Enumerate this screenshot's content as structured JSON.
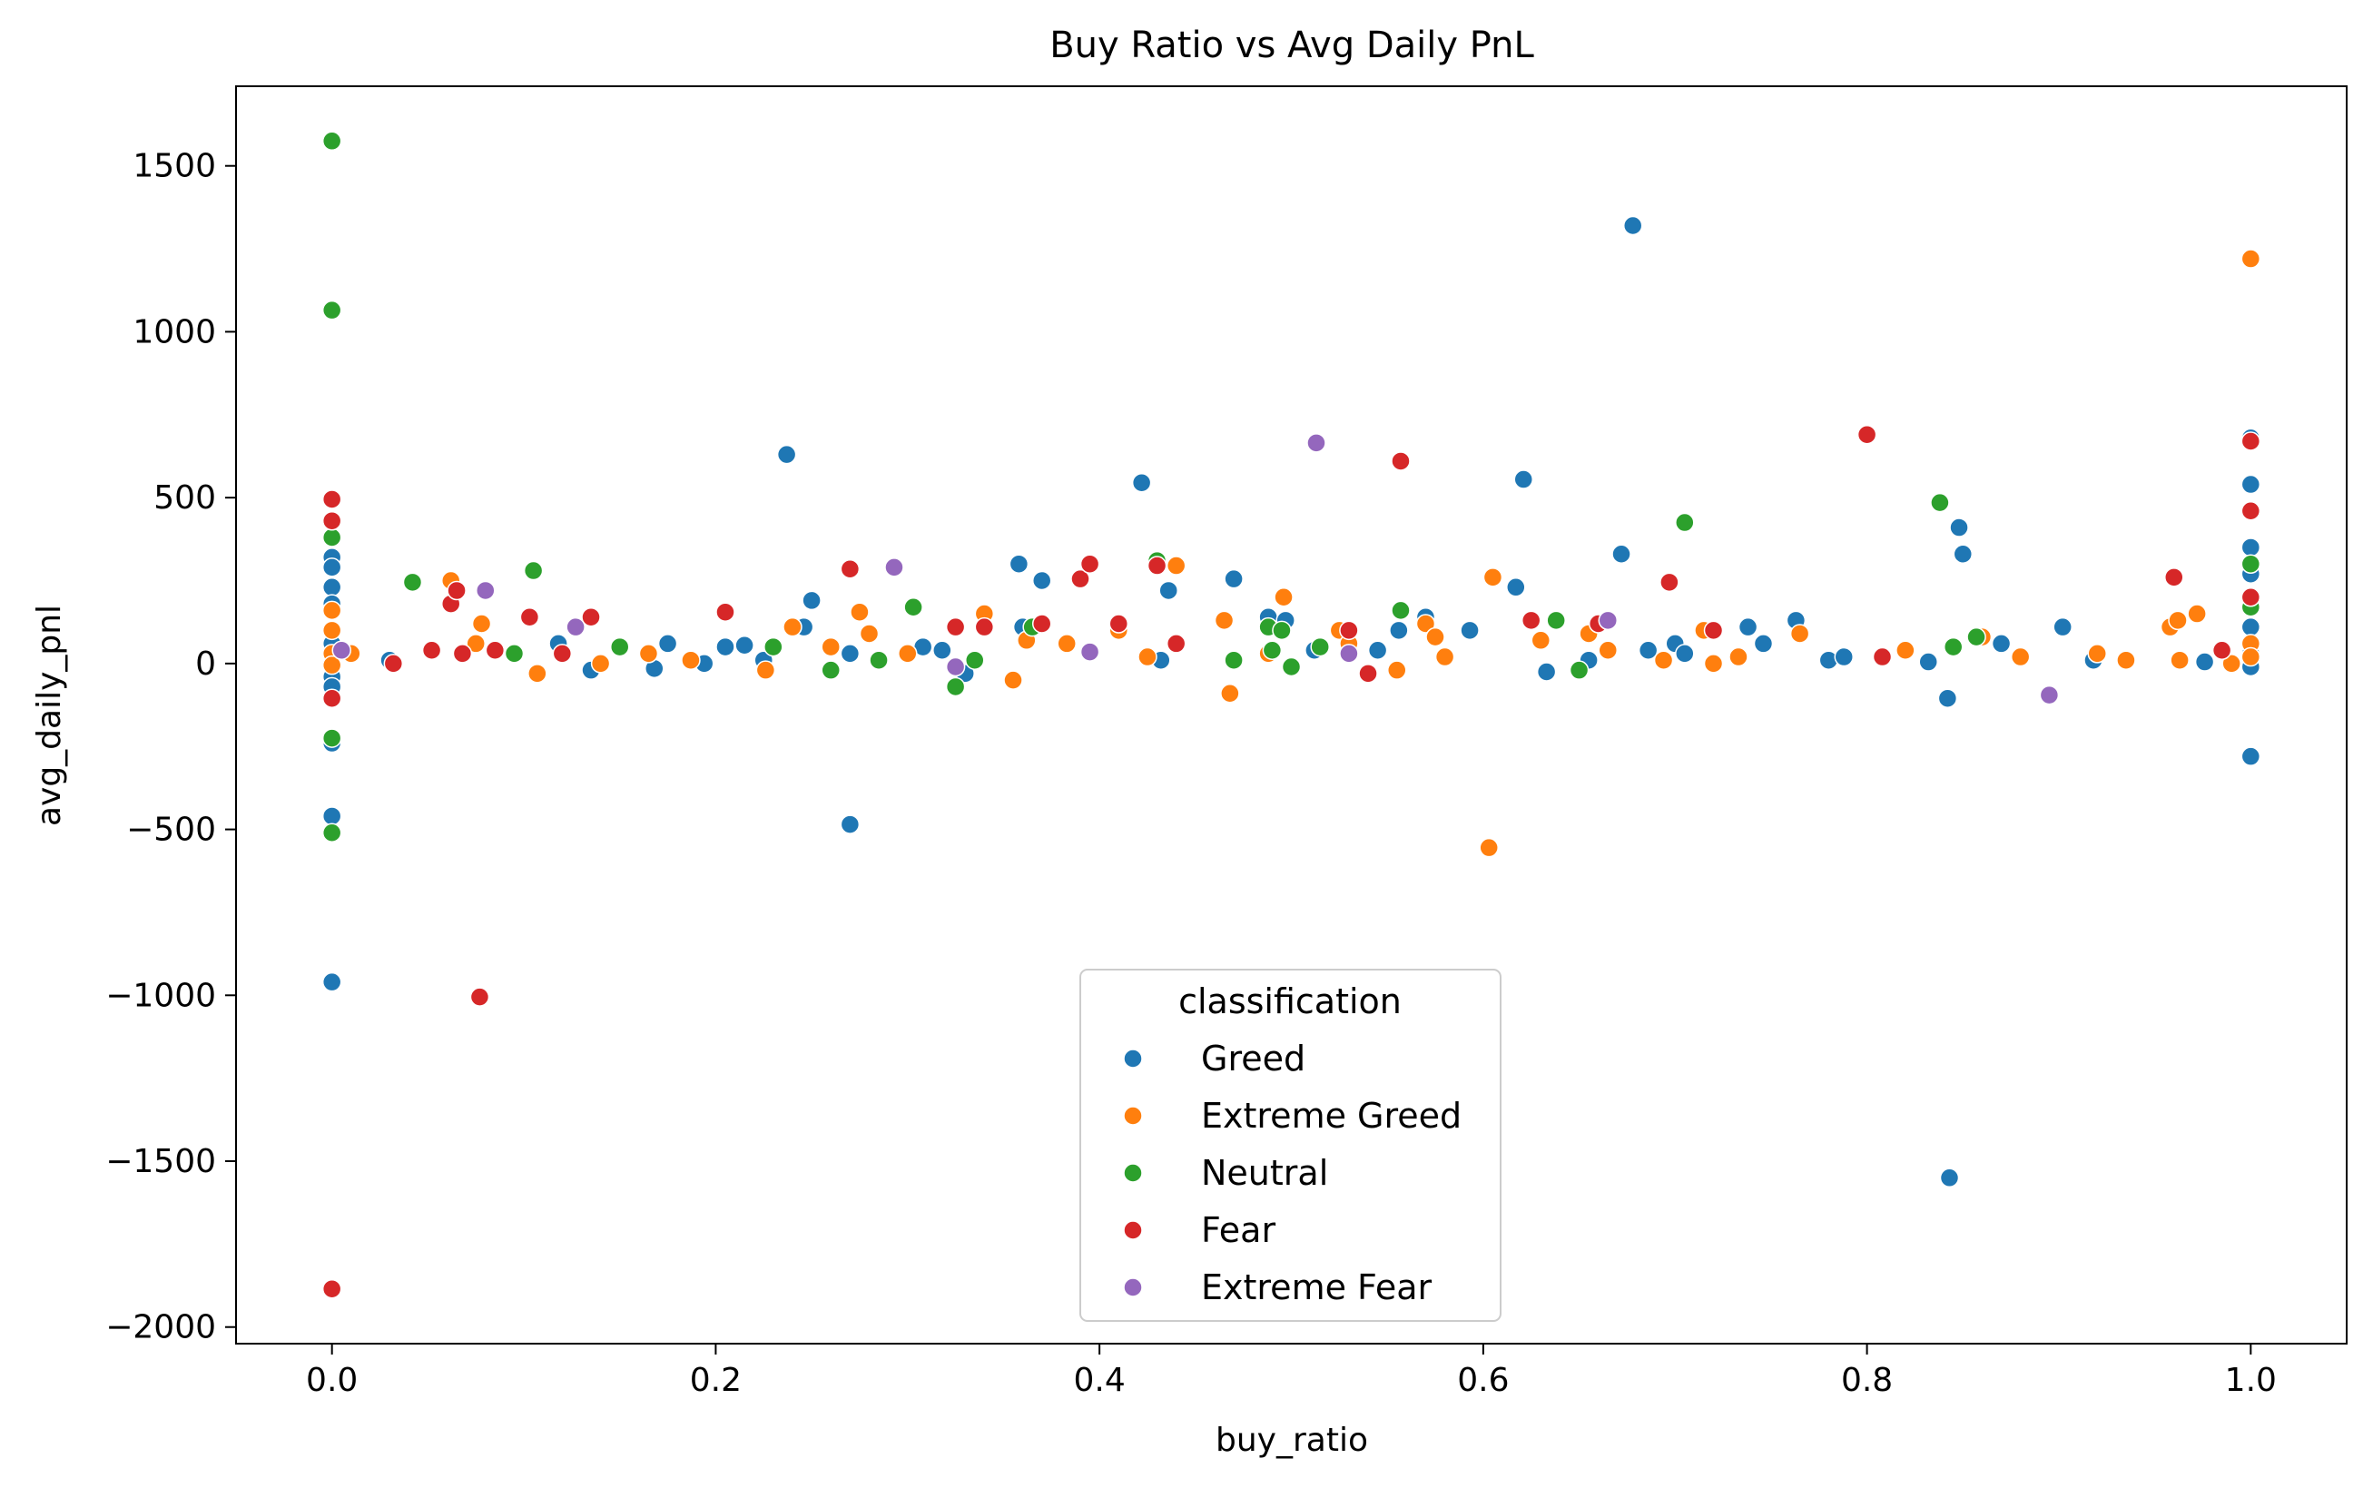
{
  "chart_data": {
    "type": "scatter",
    "title": "Buy Ratio vs Avg Daily PnL",
    "xlabel": "buy_ratio",
    "ylabel": "avg_daily_pnl",
    "xlim": [
      -0.05,
      1.05
    ],
    "ylim": [
      -2050,
      1740
    ],
    "xticks": [
      0.0,
      0.2,
      0.4,
      0.6,
      0.8,
      1.0
    ],
    "xtick_labels": [
      "0.0",
      "0.2",
      "0.4",
      "0.6",
      "0.8",
      "1.0"
    ],
    "yticks": [
      -2000,
      -1500,
      -1000,
      -500,
      0,
      500,
      1000,
      1500
    ],
    "ytick_labels": [
      "−2000",
      "−1500",
      "−1000",
      "−500",
      "0",
      "500",
      "1000",
      "1500"
    ],
    "grid": false,
    "legend": {
      "title": "classification",
      "placement": "lower-center"
    },
    "series": [
      {
        "name": "Greed",
        "color": "#1f77b4",
        "points": [
          [
            0.0,
            320
          ],
          [
            0.0,
            290
          ],
          [
            0.0,
            230
          ],
          [
            0.0,
            180
          ],
          [
            0.0,
            60
          ],
          [
            0.0,
            -40
          ],
          [
            0.0,
            -70
          ],
          [
            0.0,
            -240
          ],
          [
            0.0,
            -460
          ],
          [
            0.0,
            -960
          ],
          [
            0.03,
            10
          ],
          [
            0.118,
            60
          ],
          [
            0.135,
            -20
          ],
          [
            0.168,
            -15
          ],
          [
            0.175,
            60
          ],
          [
            0.194,
            0
          ],
          [
            0.205,
            50
          ],
          [
            0.215,
            55
          ],
          [
            0.225,
            10
          ],
          [
            0.237,
            630
          ],
          [
            0.246,
            110
          ],
          [
            0.25,
            190
          ],
          [
            0.27,
            -485
          ],
          [
            0.27,
            30
          ],
          [
            0.308,
            50
          ],
          [
            0.318,
            40
          ],
          [
            0.33,
            -30
          ],
          [
            0.358,
            300
          ],
          [
            0.36,
            110
          ],
          [
            0.37,
            250
          ],
          [
            0.422,
            545
          ],
          [
            0.432,
            10
          ],
          [
            0.436,
            220
          ],
          [
            0.47,
            255
          ],
          [
            0.488,
            140
          ],
          [
            0.497,
            130
          ],
          [
            0.512,
            40
          ],
          [
            0.545,
            40
          ],
          [
            0.556,
            100
          ],
          [
            0.57,
            140
          ],
          [
            0.593,
            100
          ],
          [
            0.617,
            230
          ],
          [
            0.621,
            555
          ],
          [
            0.633,
            -25
          ],
          [
            0.655,
            10
          ],
          [
            0.672,
            330
          ],
          [
            0.678,
            1320
          ],
          [
            0.686,
            40
          ],
          [
            0.7,
            60
          ],
          [
            0.705,
            30
          ],
          [
            0.738,
            110
          ],
          [
            0.746,
            60
          ],
          [
            0.763,
            130
          ],
          [
            0.78,
            10
          ],
          [
            0.788,
            20
          ],
          [
            0.832,
            5
          ],
          [
            0.842,
            -105
          ],
          [
            0.843,
            -1550
          ],
          [
            0.848,
            410
          ],
          [
            0.85,
            330
          ],
          [
            0.87,
            60
          ],
          [
            0.902,
            110
          ],
          [
            0.918,
            10
          ],
          [
            0.976,
            5
          ],
          [
            1.0,
            680
          ],
          [
            1.0,
            540
          ],
          [
            1.0,
            350
          ],
          [
            1.0,
            270
          ],
          [
            1.0,
            110
          ],
          [
            1.0,
            30
          ],
          [
            1.0,
            -10
          ],
          [
            1.0,
            -280
          ]
        ]
      },
      {
        "name": "Extreme Greed",
        "color": "#ff7f0e",
        "points": [
          [
            0.0,
            160
          ],
          [
            0.0,
            100
          ],
          [
            0.0,
            30
          ],
          [
            0.0,
            -5
          ],
          [
            0.01,
            30
          ],
          [
            0.062,
            250
          ],
          [
            0.075,
            60
          ],
          [
            0.078,
            120
          ],
          [
            0.107,
            -30
          ],
          [
            0.14,
            0
          ],
          [
            0.165,
            30
          ],
          [
            0.187,
            10
          ],
          [
            0.226,
            -20
          ],
          [
            0.24,
            110
          ],
          [
            0.26,
            50
          ],
          [
            0.275,
            155
          ],
          [
            0.28,
            90
          ],
          [
            0.3,
            30
          ],
          [
            0.34,
            150
          ],
          [
            0.355,
            -50
          ],
          [
            0.362,
            70
          ],
          [
            0.383,
            60
          ],
          [
            0.41,
            100
          ],
          [
            0.425,
            20
          ],
          [
            0.44,
            295
          ],
          [
            0.465,
            130
          ],
          [
            0.468,
            -90
          ],
          [
            0.488,
            30
          ],
          [
            0.496,
            200
          ],
          [
            0.525,
            100
          ],
          [
            0.53,
            60
          ],
          [
            0.555,
            -20
          ],
          [
            0.57,
            120
          ],
          [
            0.575,
            80
          ],
          [
            0.58,
            20
          ],
          [
            0.603,
            -555
          ],
          [
            0.605,
            260
          ],
          [
            0.63,
            70
          ],
          [
            0.655,
            90
          ],
          [
            0.665,
            40
          ],
          [
            0.694,
            10
          ],
          [
            0.715,
            100
          ],
          [
            0.72,
            0
          ],
          [
            0.733,
            20
          ],
          [
            0.765,
            90
          ],
          [
            0.82,
            40
          ],
          [
            0.86,
            80
          ],
          [
            0.88,
            20
          ],
          [
            0.92,
            30
          ],
          [
            0.935,
            10
          ],
          [
            0.958,
            110
          ],
          [
            0.962,
            130
          ],
          [
            0.963,
            10
          ],
          [
            0.972,
            150
          ],
          [
            0.99,
            0
          ],
          [
            1.0,
            1220
          ],
          [
            1.0,
            60
          ],
          [
            1.0,
            20
          ]
        ]
      },
      {
        "name": "Neutral",
        "color": "#2ca02c",
        "points": [
          [
            0.0,
            1575
          ],
          [
            0.0,
            1065
          ],
          [
            0.0,
            380
          ],
          [
            0.0,
            -225
          ],
          [
            0.0,
            -510
          ],
          [
            0.042,
            245
          ],
          [
            0.095,
            30
          ],
          [
            0.105,
            280
          ],
          [
            0.15,
            50
          ],
          [
            0.23,
            50
          ],
          [
            0.26,
            -20
          ],
          [
            0.285,
            10
          ],
          [
            0.303,
            170
          ],
          [
            0.325,
            -70
          ],
          [
            0.335,
            10
          ],
          [
            0.365,
            110
          ],
          [
            0.43,
            310
          ],
          [
            0.47,
            10
          ],
          [
            0.488,
            110
          ],
          [
            0.49,
            40
          ],
          [
            0.495,
            100
          ],
          [
            0.5,
            -10
          ],
          [
            0.515,
            50
          ],
          [
            0.557,
            160
          ],
          [
            0.638,
            130
          ],
          [
            0.65,
            -20
          ],
          [
            0.705,
            425
          ],
          [
            0.838,
            485
          ],
          [
            0.845,
            50
          ],
          [
            0.857,
            80
          ],
          [
            1.0,
            300
          ],
          [
            1.0,
            170
          ]
        ]
      },
      {
        "name": "Fear",
        "color": "#d62728",
        "points": [
          [
            0.0,
            495
          ],
          [
            0.0,
            430
          ],
          [
            0.0,
            -105
          ],
          [
            0.0,
            -1885
          ],
          [
            0.032,
            0
          ],
          [
            0.052,
            40
          ],
          [
            0.062,
            180
          ],
          [
            0.065,
            220
          ],
          [
            0.068,
            30
          ],
          [
            0.077,
            -1005
          ],
          [
            0.085,
            40
          ],
          [
            0.103,
            140
          ],
          [
            0.12,
            30
          ],
          [
            0.135,
            140
          ],
          [
            0.205,
            155
          ],
          [
            0.27,
            285
          ],
          [
            0.325,
            110
          ],
          [
            0.34,
            110
          ],
          [
            0.37,
            120
          ],
          [
            0.39,
            255
          ],
          [
            0.395,
            300
          ],
          [
            0.41,
            120
          ],
          [
            0.43,
            295
          ],
          [
            0.44,
            60
          ],
          [
            0.53,
            100
          ],
          [
            0.54,
            -30
          ],
          [
            0.557,
            610
          ],
          [
            0.625,
            130
          ],
          [
            0.66,
            120
          ],
          [
            0.697,
            245
          ],
          [
            0.72,
            100
          ],
          [
            0.8,
            690
          ],
          [
            0.808,
            20
          ],
          [
            0.96,
            260
          ],
          [
            0.985,
            40
          ],
          [
            1.0,
            670
          ],
          [
            1.0,
            460
          ],
          [
            1.0,
            200
          ]
        ]
      },
      {
        "name": "Extreme Fear",
        "color": "#9467bd",
        "points": [
          [
            0.005,
            40
          ],
          [
            0.08,
            220
          ],
          [
            0.127,
            110
          ],
          [
            0.293,
            290
          ],
          [
            0.325,
            -10
          ],
          [
            0.395,
            35
          ],
          [
            0.513,
            665
          ],
          [
            0.53,
            30
          ],
          [
            0.665,
            130
          ],
          [
            0.895,
            -95
          ]
        ]
      }
    ]
  }
}
